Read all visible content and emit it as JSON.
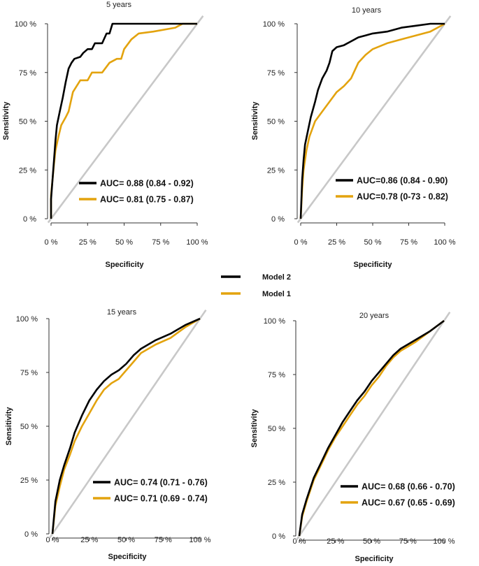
{
  "colors": {
    "model2": "#000000",
    "model1": "#E3A30E",
    "diagonal": "#C8C8C8"
  },
  "legend": {
    "model2_label": "Model 2",
    "model1_label": "Model 1"
  },
  "chart_data": [
    {
      "type": "line",
      "title": "5 years",
      "xlabel": "Specificity",
      "ylabel": "Sensitivity",
      "xlim": [
        0,
        1
      ],
      "ylim": [
        0,
        1
      ],
      "ticks": [
        "0 %",
        "25 %",
        "50 %",
        "75 %",
        "100 %"
      ],
      "auc_labels": [
        "AUC= 0.88 (0.84 - 0.92)",
        "AUC= 0.81 (0.75 - 0.87)"
      ],
      "series": [
        {
          "name": "Model 2",
          "color_key": "model2",
          "x": [
            0,
            0,
            0.01,
            0.02,
            0.03,
            0.04,
            0.06,
            0.08,
            0.1,
            0.12,
            0.14,
            0.16,
            0.2,
            0.22,
            0.25,
            0.28,
            0.3,
            0.35,
            0.38,
            0.4,
            0.42,
            0.45,
            0.5,
            0.52,
            0.6,
            0.7,
            0.85,
            1
          ],
          "y": [
            0,
            0.1,
            0.2,
            0.3,
            0.4,
            0.48,
            0.55,
            0.62,
            0.7,
            0.77,
            0.8,
            0.82,
            0.83,
            0.85,
            0.87,
            0.87,
            0.9,
            0.9,
            0.95,
            0.95,
            1,
            1,
            1,
            1,
            1,
            1,
            1,
            1
          ]
        },
        {
          "name": "Model 1",
          "color_key": "model1",
          "x": [
            0,
            0,
            0.01,
            0.02,
            0.03,
            0.05,
            0.07,
            0.1,
            0.12,
            0.15,
            0.2,
            0.25,
            0.28,
            0.35,
            0.4,
            0.45,
            0.48,
            0.5,
            0.55,
            0.6,
            0.7,
            0.85,
            0.9,
            1
          ],
          "y": [
            0,
            0.12,
            0.2,
            0.28,
            0.35,
            0.42,
            0.48,
            0.52,
            0.55,
            0.65,
            0.71,
            0.71,
            0.75,
            0.75,
            0.8,
            0.82,
            0.82,
            0.87,
            0.92,
            0.95,
            0.96,
            0.98,
            1,
            1
          ]
        }
      ]
    },
    {
      "type": "line",
      "title": "10 years",
      "xlabel": "Specificity",
      "ylabel": "Sensitivity",
      "xlim": [
        0,
        1
      ],
      "ylim": [
        0,
        1
      ],
      "ticks": [
        "0 %",
        "25 %",
        "50 %",
        "75 %",
        "100 %"
      ],
      "auc_labels": [
        "AUC=0.86 (0.84 - 0.90)",
        "AUC=0.78 (0-73 - 0.82)"
      ],
      "series": [
        {
          "name": "Model 2",
          "color_key": "model2",
          "x": [
            0,
            0.01,
            0.02,
            0.03,
            0.05,
            0.07,
            0.1,
            0.12,
            0.15,
            0.18,
            0.2,
            0.22,
            0.25,
            0.3,
            0.35,
            0.4,
            0.45,
            0.5,
            0.6,
            0.7,
            0.8,
            0.9,
            1
          ],
          "y": [
            0,
            0.2,
            0.3,
            0.38,
            0.45,
            0.52,
            0.6,
            0.66,
            0.72,
            0.76,
            0.8,
            0.86,
            0.88,
            0.89,
            0.91,
            0.93,
            0.94,
            0.95,
            0.96,
            0.98,
            0.99,
            1,
            1
          ]
        },
        {
          "name": "Model 1",
          "color_key": "model1",
          "x": [
            0,
            0.01,
            0.02,
            0.04,
            0.06,
            0.08,
            0.1,
            0.15,
            0.2,
            0.25,
            0.3,
            0.35,
            0.4,
            0.45,
            0.5,
            0.6,
            0.7,
            0.8,
            0.9,
            0.95,
            1
          ],
          "y": [
            0,
            0.15,
            0.25,
            0.35,
            0.42,
            0.46,
            0.5,
            0.55,
            0.6,
            0.65,
            0.68,
            0.72,
            0.8,
            0.84,
            0.87,
            0.9,
            0.92,
            0.94,
            0.96,
            0.98,
            1
          ]
        }
      ]
    },
    {
      "type": "line",
      "title": "15 years",
      "xlabel": "Specificity",
      "ylabel": "Sensitivity",
      "xlim": [
        0,
        1
      ],
      "ylim": [
        0,
        1
      ],
      "ticks": [
        "0 %",
        "25 %",
        "50 %",
        "75 %",
        "100 %"
      ],
      "auc_labels": [
        "AUC= 0.74 (0.71 - 0.76)",
        "AUC= 0.71 (0.69 - 0.74)"
      ],
      "series": [
        {
          "name": "Model 2",
          "color_key": "model2",
          "x": [
            0,
            0.02,
            0.05,
            0.08,
            0.12,
            0.15,
            0.2,
            0.25,
            0.3,
            0.35,
            0.4,
            0.45,
            0.5,
            0.55,
            0.6,
            0.7,
            0.8,
            0.9,
            1
          ],
          "y": [
            0,
            0.15,
            0.25,
            0.32,
            0.4,
            0.47,
            0.55,
            0.62,
            0.67,
            0.71,
            0.74,
            0.76,
            0.79,
            0.83,
            0.86,
            0.9,
            0.93,
            0.97,
            1
          ]
        },
        {
          "name": "Model 1",
          "color_key": "model1",
          "x": [
            0,
            0.02,
            0.05,
            0.08,
            0.12,
            0.15,
            0.2,
            0.25,
            0.3,
            0.35,
            0.4,
            0.45,
            0.5,
            0.55,
            0.6,
            0.7,
            0.8,
            0.9,
            1
          ],
          "y": [
            0,
            0.13,
            0.22,
            0.3,
            0.37,
            0.43,
            0.5,
            0.56,
            0.62,
            0.67,
            0.7,
            0.72,
            0.76,
            0.8,
            0.84,
            0.88,
            0.91,
            0.96,
            1
          ]
        }
      ]
    },
    {
      "type": "line",
      "title": "20 years",
      "xlabel": "Specificity",
      "ylabel": "Sensitivity",
      "xlim": [
        0,
        1
      ],
      "ylim": [
        0,
        1
      ],
      "ticks": [
        "0 %",
        "25 %",
        "50 %",
        "75 %",
        "100 %"
      ],
      "auc_labels": [
        "AUC= 0.68 (0.66 - 0.70)",
        "AUC= 0.67 (0.65 - 0.69)"
      ],
      "series": [
        {
          "name": "Model 2",
          "color_key": "model2",
          "x": [
            0,
            0.02,
            0.05,
            0.1,
            0.15,
            0.2,
            0.25,
            0.3,
            0.35,
            0.4,
            0.45,
            0.5,
            0.55,
            0.6,
            0.65,
            0.7,
            0.75,
            0.8,
            0.9,
            1
          ],
          "y": [
            0,
            0.1,
            0.17,
            0.27,
            0.34,
            0.41,
            0.47,
            0.53,
            0.58,
            0.63,
            0.67,
            0.72,
            0.76,
            0.8,
            0.84,
            0.87,
            0.89,
            0.91,
            0.95,
            1
          ]
        },
        {
          "name": "Model 1",
          "color_key": "model1",
          "x": [
            0,
            0.02,
            0.05,
            0.1,
            0.15,
            0.2,
            0.25,
            0.3,
            0.35,
            0.4,
            0.45,
            0.5,
            0.55,
            0.6,
            0.65,
            0.7,
            0.75,
            0.8,
            0.9,
            1
          ],
          "y": [
            0,
            0.09,
            0.16,
            0.26,
            0.33,
            0.4,
            0.46,
            0.51,
            0.56,
            0.61,
            0.65,
            0.7,
            0.74,
            0.79,
            0.83,
            0.86,
            0.88,
            0.9,
            0.95,
            1
          ]
        }
      ]
    }
  ]
}
